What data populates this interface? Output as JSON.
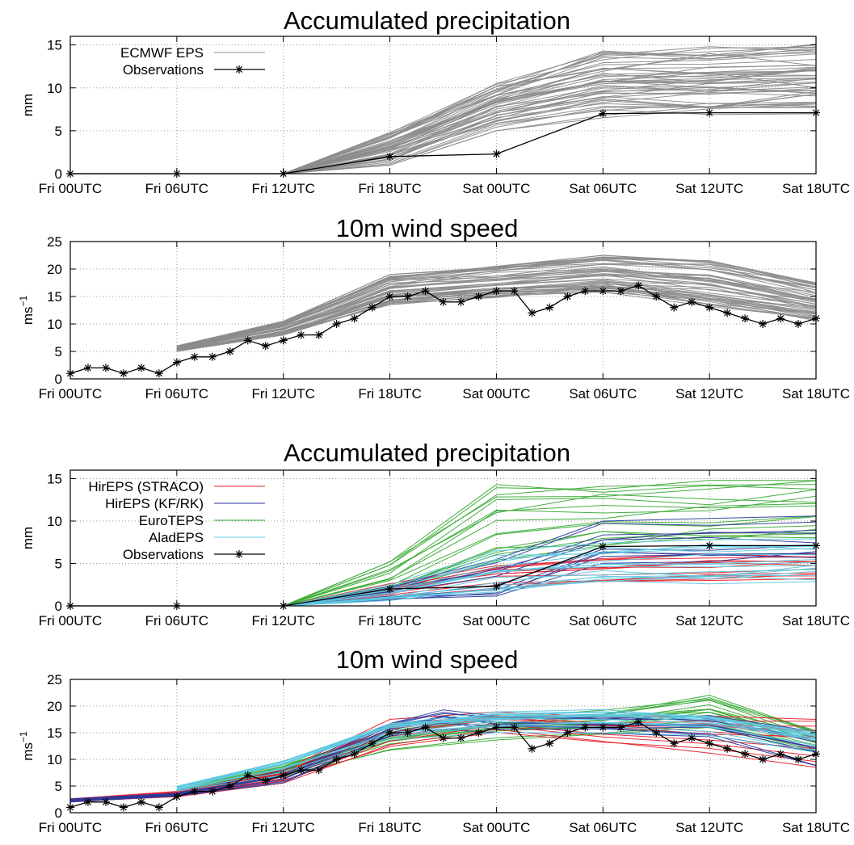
{
  "chart_data": [
    {
      "type": "line",
      "title": "Accumulated precipitation",
      "ylabel": "mm",
      "ylabel_sup": "",
      "xlabel": "",
      "categories": [
        "Fri 00UTC",
        "Fri 06UTC",
        "Fri 12UTC",
        "Fri 18UTC",
        "Sat 00UTC",
        "Sat 06UTC",
        "Sat 12UTC",
        "Sat 18UTC"
      ],
      "xlim": [
        0,
        42
      ],
      "ylim": [
        0,
        16
      ],
      "yticks": [
        0,
        5,
        10,
        15
      ],
      "grid": true,
      "legend_placement": "top-left",
      "legend": [
        "ECMWF EPS",
        "Observations"
      ],
      "colors": {
        "ECMWF EPS": "#8c8c8c",
        "Observations": "#000000"
      },
      "series": [
        {
          "name": "ECMWF EPS",
          "ensemble": true,
          "members": 50,
          "x": [
            12,
            18,
            24,
            30,
            36,
            42
          ],
          "low": [
            0,
            1.0,
            5.0,
            6.5,
            6.7,
            6.8
          ],
          "high": [
            0,
            4.8,
            10.5,
            14.3,
            14.8,
            15.1
          ]
        },
        {
          "name": "Observations",
          "x": [
            0,
            6,
            12,
            18,
            24,
            30,
            36,
            42
          ],
          "values": [
            0,
            0,
            0,
            2.0,
            2.3,
            7.0,
            7.1,
            7.1
          ]
        }
      ]
    },
    {
      "type": "line",
      "title": "10m wind speed",
      "ylabel": "ms",
      "ylabel_sup": "−1",
      "xlabel": "",
      "categories": [
        "Fri 00UTC",
        "Fri 06UTC",
        "Fri 12UTC",
        "Fri 18UTC",
        "Sat 00UTC",
        "Sat 06UTC",
        "Sat 12UTC",
        "Sat 18UTC"
      ],
      "xlim": [
        0,
        42
      ],
      "ylim": [
        0,
        25
      ],
      "yticks": [
        0,
        5,
        10,
        15,
        20,
        25
      ],
      "grid": true,
      "colors": {
        "ECMWF EPS": "#8c8c8c",
        "Observations": "#000000"
      },
      "series": [
        {
          "name": "ECMWF EPS",
          "ensemble": true,
          "members": 50,
          "x": [
            6,
            12,
            18,
            24,
            30,
            36,
            42
          ],
          "low": [
            5.0,
            8.0,
            13.5,
            14.8,
            15.8,
            13.2,
            10.5
          ],
          "high": [
            6.0,
            10.5,
            19.0,
            20.5,
            22.5,
            21.5,
            17.5
          ]
        },
        {
          "name": "Observations",
          "x": [
            0,
            1,
            2,
            3,
            4,
            5,
            6,
            7,
            8,
            9,
            10,
            11,
            12,
            13,
            14,
            15,
            16,
            17,
            18,
            19,
            20,
            21,
            22,
            23,
            24,
            25,
            26,
            27,
            28,
            29,
            30,
            31,
            32,
            33,
            34,
            35,
            36,
            37,
            38,
            39,
            40,
            41,
            42
          ],
          "values": [
            1,
            2,
            2,
            1,
            2,
            1,
            3,
            4,
            4,
            5,
            7,
            6,
            7,
            8,
            8,
            10,
            11,
            13,
            15,
            15,
            16,
            14,
            14,
            15,
            16,
            16,
            12,
            13,
            15,
            16,
            16,
            16,
            17,
            15,
            13,
            14,
            13,
            12,
            11,
            10,
            11,
            10,
            11
          ]
        }
      ]
    },
    {
      "type": "line",
      "title": "Accumulated precipitation",
      "ylabel": "mm",
      "ylabel_sup": "",
      "xlabel": "",
      "categories": [
        "Fri 00UTC",
        "Fri 06UTC",
        "Fri 12UTC",
        "Fri 18UTC",
        "Sat 00UTC",
        "Sat 06UTC",
        "Sat 12UTC",
        "Sat 18UTC"
      ],
      "xlim": [
        0,
        42
      ],
      "ylim": [
        0,
        16
      ],
      "yticks": [
        0,
        5,
        10,
        15
      ],
      "grid": true,
      "legend_placement": "top-left",
      "legend": [
        "HirEPS (STRACO)",
        "HirEPS (KF/RK)",
        "EuroTEPS",
        "AladEPS",
        "Observations"
      ],
      "colors": {
        "HirEPS (STRACO)": "#e8202a",
        "HirEPS (KF/RK)": "#2d3a9c",
        "EuroTEPS": "#3aaa35",
        "AladEPS": "#5fc8e0",
        "Observations": "#000000"
      },
      "series": [
        {
          "name": "EuroTEPS",
          "ensemble": true,
          "members": 16,
          "x": [
            0,
            6,
            12,
            18,
            24,
            30,
            36,
            42
          ],
          "low": [
            0,
            0,
            0,
            1.5,
            4.5,
            7.0,
            7.5,
            7.8
          ],
          "high": [
            0,
            0,
            0,
            5.2,
            14.3,
            14.6,
            14.8,
            14.8
          ]
        },
        {
          "name": "HirEPS (STRACO)",
          "ensemble": true,
          "members": 12,
          "x": [
            0,
            6,
            12,
            18,
            24,
            30,
            36,
            42
          ],
          "low": [
            0,
            0,
            0,
            0.8,
            2.0,
            2.5,
            3.0,
            3.2
          ],
          "high": [
            0,
            0,
            0,
            2.8,
            5.2,
            6.0,
            6.5,
            6.6
          ]
        },
        {
          "name": "HirEPS (KF/RK)",
          "ensemble": true,
          "members": 10,
          "x": [
            0,
            6,
            12,
            18,
            24,
            30,
            36,
            42
          ],
          "low": [
            0,
            0,
            0,
            0.7,
            0.8,
            5.0,
            5.2,
            5.3
          ],
          "high": [
            0,
            0,
            0,
            2.5,
            5.5,
            10.0,
            10.3,
            10.6
          ]
        },
        {
          "name": "AladEPS",
          "ensemble": true,
          "members": 16,
          "x": [
            0,
            6,
            12,
            18,
            24,
            30,
            36,
            42
          ],
          "low": [
            0,
            0,
            0,
            0.5,
            1.5,
            2.2,
            2.6,
            2.8
          ],
          "high": [
            0,
            0,
            0,
            2.5,
            6.5,
            7.4,
            7.8,
            8.0
          ]
        },
        {
          "name": "Observations",
          "x": [
            0,
            6,
            12,
            18,
            24,
            30,
            36,
            42
          ],
          "values": [
            0,
            0,
            0,
            2.0,
            2.3,
            7.0,
            7.1,
            7.1
          ]
        }
      ]
    },
    {
      "type": "line",
      "title": "10m wind speed",
      "ylabel": "ms",
      "ylabel_sup": "−1",
      "xlabel": "",
      "categories": [
        "Fri 00UTC",
        "Fri 06UTC",
        "Fri 12UTC",
        "Fri 18UTC",
        "Sat 00UTC",
        "Sat 06UTC",
        "Sat 12UTC",
        "Sat 18UTC"
      ],
      "xlim": [
        0,
        42
      ],
      "ylim": [
        0,
        25
      ],
      "yticks": [
        0,
        5,
        10,
        15,
        20,
        25
      ],
      "grid": true,
      "colors": {
        "HirEPS (STRACO)": "#e8202a",
        "HirEPS (KF/RK)": "#2d3a9c",
        "EuroTEPS": "#3aaa35",
        "AladEPS": "#5fc8e0",
        "Observations": "#000000"
      },
      "series": [
        {
          "name": "EuroTEPS",
          "ensemble": true,
          "members": 16,
          "x": [
            6,
            12,
            18,
            24,
            30,
            36,
            42
          ],
          "low": [
            3.5,
            6.5,
            11.5,
            13.5,
            14.5,
            15.0,
            11.0
          ],
          "high": [
            4.5,
            9.0,
            15.5,
            18.5,
            19.5,
            22.5,
            16.0
          ]
        },
        {
          "name": "HirEPS (STRACO)",
          "ensemble": true,
          "members": 12,
          "x": [
            0,
            6,
            12,
            18,
            24,
            30,
            36,
            42
          ],
          "low": [
            2.0,
            3.0,
            5.5,
            12.0,
            15.0,
            13.0,
            11.0,
            8.5
          ],
          "high": [
            2.6,
            4.0,
            8.0,
            17.5,
            19.0,
            18.0,
            18.5,
            17.5
          ]
        },
        {
          "name": "HirEPS (KF/RK)",
          "ensemble": true,
          "members": 10,
          "x": [
            0,
            6,
            12,
            18,
            21,
            24,
            30,
            36,
            42
          ],
          "low": [
            2.0,
            3.0,
            5.3,
            14.0,
            15.5,
            15.0,
            14.5,
            13.5,
            7.8
          ],
          "high": [
            2.6,
            3.8,
            8.0,
            17.5,
            20.5,
            18.5,
            18.5,
            19.0,
            16.5
          ]
        },
        {
          "name": "AladEPS",
          "ensemble": true,
          "members": 16,
          "x": [
            6,
            12,
            18,
            24,
            30,
            36,
            42
          ],
          "low": [
            4.0,
            7.0,
            13.5,
            15.0,
            15.0,
            14.5,
            11.0
          ],
          "high": [
            5.0,
            10.0,
            17.0,
            19.0,
            19.5,
            18.5,
            15.5
          ]
        },
        {
          "name": "Observations",
          "x": [
            0,
            1,
            2,
            3,
            4,
            5,
            6,
            7,
            8,
            9,
            10,
            11,
            12,
            13,
            14,
            15,
            16,
            17,
            18,
            19,
            20,
            21,
            22,
            23,
            24,
            25,
            26,
            27,
            28,
            29,
            30,
            31,
            32,
            33,
            34,
            35,
            36,
            37,
            38,
            39,
            40,
            41,
            42
          ],
          "values": [
            1,
            2,
            2,
            1,
            2,
            1,
            3,
            4,
            4,
            5,
            7,
            6,
            7,
            8,
            8,
            10,
            11,
            13,
            15,
            15,
            16,
            14,
            14,
            15,
            16,
            16,
            12,
            13,
            15,
            16,
            16,
            16,
            17,
            15,
            13,
            14,
            13,
            12,
            11,
            10,
            11,
            10,
            11
          ]
        }
      ]
    }
  ]
}
